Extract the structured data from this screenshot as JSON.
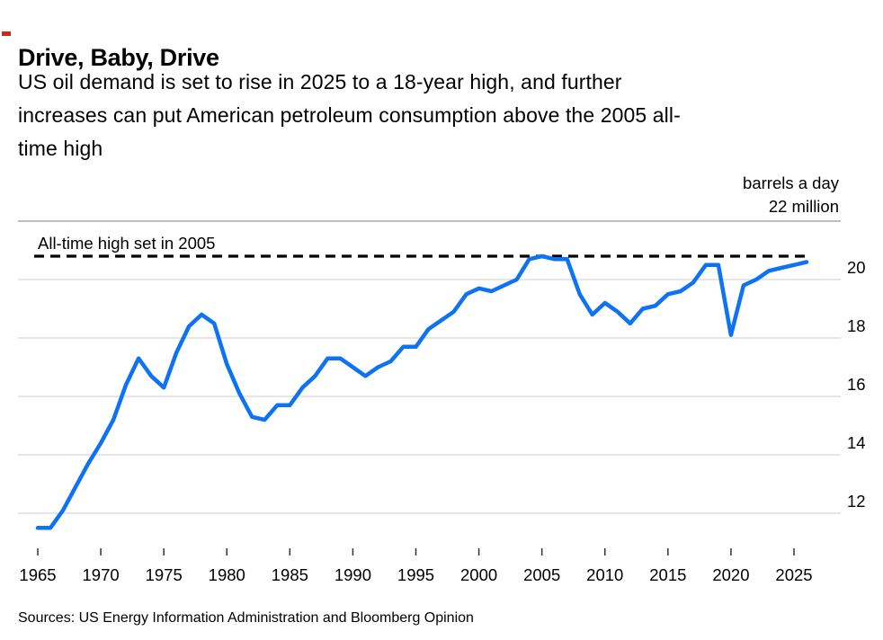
{
  "header": {
    "title": "Drive, Baby, Drive",
    "subtitle": "US oil demand is set to rise in 2025 to a 18-year high, and further increases can put American petroleum consumption above the 2005 all-time high",
    "subtitle_lines": [
      "US oil demand is set to rise in 2025 to a 18-year high, and further",
      "increases can put American petroleum consumption above the 2005 all-",
      "time high"
    ]
  },
  "chart_data": {
    "type": "line",
    "title": "Drive, Baby, Drive",
    "subtitle": "US oil demand is set to rise in 2025 to a 18-year high, and further increases can put American petroleum consumption above the 2005 all-time high",
    "unit_label_lines": [
      "barrels a day",
      "22 million"
    ],
    "ylabel": "million barrels a day",
    "xlabel": "",
    "grid": true,
    "legend": "none",
    "xlim": [
      1965,
      2026
    ],
    "ylim": [
      11,
      22
    ],
    "x_ticks": [
      1965,
      1970,
      1975,
      1980,
      1985,
      1990,
      1995,
      2000,
      2005,
      2010,
      2015,
      2020,
      2025
    ],
    "y_gridlines": [
      22,
      20,
      18,
      16,
      14,
      12
    ],
    "y_tick_labels": [
      20,
      18,
      16,
      14,
      12
    ],
    "annotation": {
      "text": "All-time high set in 2005",
      "value": 20.8
    },
    "x": [
      1965,
      1966,
      1967,
      1968,
      1969,
      1970,
      1971,
      1972,
      1973,
      1974,
      1975,
      1976,
      1977,
      1978,
      1979,
      1980,
      1981,
      1982,
      1983,
      1984,
      1985,
      1986,
      1987,
      1988,
      1989,
      1990,
      1991,
      1992,
      1993,
      1994,
      1995,
      1996,
      1997,
      1998,
      1999,
      2000,
      2001,
      2002,
      2003,
      2004,
      2005,
      2006,
      2007,
      2008,
      2009,
      2010,
      2011,
      2012,
      2013,
      2014,
      2015,
      2016,
      2017,
      2018,
      2019,
      2020,
      2021,
      2022,
      2023,
      2024,
      2025,
      2026
    ],
    "series": [
      {
        "name": "US oil demand (million barrels a day)",
        "values": [
          11.5,
          11.5,
          12.1,
          12.9,
          13.7,
          14.4,
          15.2,
          16.4,
          17.3,
          16.7,
          16.3,
          17.5,
          18.4,
          18.8,
          18.5,
          17.1,
          16.1,
          15.3,
          15.2,
          15.7,
          15.7,
          16.3,
          16.7,
          17.3,
          17.3,
          17.0,
          16.7,
          17.0,
          17.2,
          17.7,
          17.7,
          18.3,
          18.6,
          18.9,
          19.5,
          19.7,
          19.6,
          19.8,
          20.0,
          20.7,
          20.8,
          20.7,
          20.7,
          19.5,
          18.8,
          19.2,
          18.9,
          18.5,
          19.0,
          19.1,
          19.5,
          19.6,
          19.9,
          20.5,
          20.5,
          18.1,
          19.8,
          20.0,
          20.3,
          20.4,
          20.5,
          20.6
        ]
      }
    ]
  },
  "footer": {
    "sources": "Sources: US Energy Information Administration and Bloomberg Opinion"
  },
  "colors": {
    "line": "#0d73f2",
    "dashed_line": "#000000",
    "grid": "#d8d8d8",
    "grid_top": "#9a9a9a",
    "tick": "#333333",
    "text": "#000000",
    "accent": "#cc2a1d",
    "background": "#ffffff"
  }
}
